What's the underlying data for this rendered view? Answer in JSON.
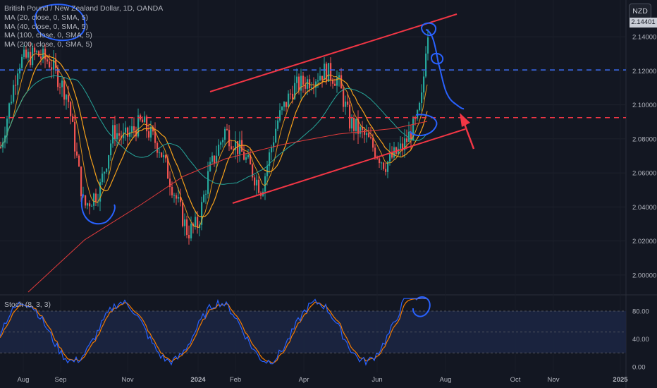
{
  "header": {
    "title": "British Pound / New Zealand Dollar, 1D, OANDA",
    "indicators": [
      "MA (20, close, 0, SMA, 5)",
      "MA (40, close, 0, SMA, 5)",
      "MA (100, close, 0, SMA, 5)",
      "MA (200, close, 0, SMA, 5)"
    ],
    "currency": "NZD",
    "last_price": "2.14401"
  },
  "chart_data": {
    "type": "candlestick",
    "price_axis_ticks": [
      "2.14000",
      "2.12000",
      "2.10000",
      "2.08000",
      "2.06000",
      "2.04000",
      "2.02000",
      "2.00000"
    ],
    "x_ticks": [
      "Aug",
      "Sep",
      "Nov",
      "2024",
      "Feb",
      "Apr",
      "Jun",
      "Aug",
      "Oct",
      "Nov",
      "2025"
    ],
    "ylim": [
      1.99,
      2.15
    ],
    "horizontal_levels": [
      {
        "value": 2.1205,
        "color": "#3a6cf4",
        "style": "dashed"
      },
      {
        "value": 2.0925,
        "color": "#f23645",
        "style": "dashed"
      }
    ],
    "channel_lines": [
      {
        "start": [
          "Feb",
          2.104
        ],
        "end": [
          "Jul",
          2.147
        ],
        "color": "#f23645"
      },
      {
        "start": [
          "Feb",
          2.041
        ],
        "end": [
          "Jul",
          2.084
        ],
        "color": "#f23645"
      }
    ],
    "projection_color": "#2962ff",
    "candles_up_color": "#26a69a",
    "candles_down_color": "#ef5350",
    "ma_colors": [
      "#f7a21b",
      "#f7a21b",
      "#26a69a",
      "#e23b3b"
    ],
    "oscillator": {
      "name": "Stoch (8, 3, 3)",
      "ticks": [
        "80.00",
        "40.00",
        "0.00"
      ],
      "ylim": [
        0,
        100
      ],
      "band": [
        20,
        80
      ],
      "k_color": "#2962ff",
      "d_color": "#f57c00"
    }
  }
}
